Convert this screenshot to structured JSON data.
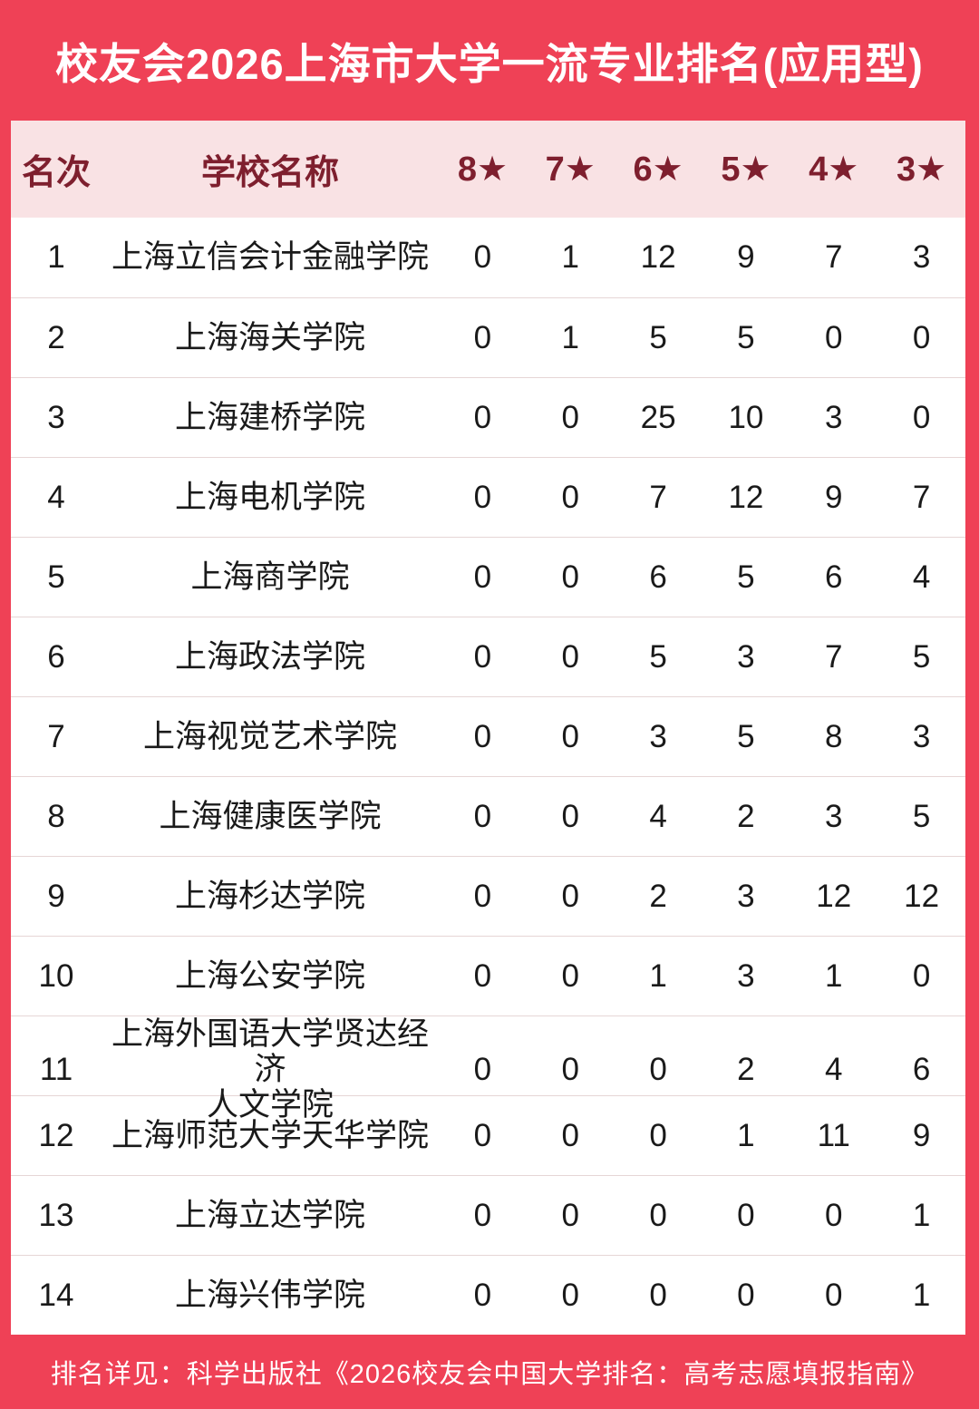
{
  "chart_data": {
    "type": "table",
    "title": "校友会2026上海市大学一流专业排名(应用型)",
    "columns": [
      "名次",
      "学校名称",
      "8★",
      "7★",
      "6★",
      "5★",
      "4★",
      "3★"
    ],
    "rows": [
      {
        "rank": "1",
        "school": "上海立信会计金融学院",
        "stars": [
          "0",
          "1",
          "12",
          "9",
          "7",
          "3"
        ]
      },
      {
        "rank": "2",
        "school": "上海海关学院",
        "stars": [
          "0",
          "1",
          "5",
          "5",
          "0",
          "0"
        ]
      },
      {
        "rank": "3",
        "school": "上海建桥学院",
        "stars": [
          "0",
          "0",
          "25",
          "10",
          "3",
          "0"
        ]
      },
      {
        "rank": "4",
        "school": "上海电机学院",
        "stars": [
          "0",
          "0",
          "7",
          "12",
          "9",
          "7"
        ]
      },
      {
        "rank": "5",
        "school": "上海商学院",
        "stars": [
          "0",
          "0",
          "6",
          "5",
          "6",
          "4"
        ]
      },
      {
        "rank": "6",
        "school": "上海政法学院",
        "stars": [
          "0",
          "0",
          "5",
          "3",
          "7",
          "5"
        ]
      },
      {
        "rank": "7",
        "school": "上海视觉艺术学院",
        "stars": [
          "0",
          "0",
          "3",
          "5",
          "8",
          "3"
        ]
      },
      {
        "rank": "8",
        "school": "上海健康医学院",
        "stars": [
          "0",
          "0",
          "4",
          "2",
          "3",
          "5"
        ]
      },
      {
        "rank": "9",
        "school": "上海杉达学院",
        "stars": [
          "0",
          "0",
          "2",
          "3",
          "12",
          "12"
        ]
      },
      {
        "rank": "10",
        "school": "上海公安学院",
        "stars": [
          "0",
          "0",
          "1",
          "3",
          "1",
          "0"
        ]
      },
      {
        "rank": "11",
        "school": "上海外国语大学贤达经济\n人文学院",
        "stars": [
          "0",
          "0",
          "0",
          "2",
          "4",
          "6"
        ]
      },
      {
        "rank": "12",
        "school": "上海师范大学天华学院",
        "stars": [
          "0",
          "0",
          "0",
          "1",
          "11",
          "9"
        ]
      },
      {
        "rank": "13",
        "school": "上海立达学院",
        "stars": [
          "0",
          "0",
          "0",
          "0",
          "0",
          "1"
        ]
      },
      {
        "rank": "14",
        "school": "上海兴伟学院",
        "stars": [
          "0",
          "0",
          "0",
          "0",
          "0",
          "1"
        ]
      }
    ],
    "footer": "排名详见：科学出版社《2026校友会中国大学排名：高考志愿填报指南》"
  },
  "colors": {
    "accent_red": "#EF4156",
    "header_pink": "#F9E2E4",
    "header_text": "#7E1F2E",
    "body_text": "#1A1A1A",
    "separator": "#E6D6D6",
    "title_text": "#FFFFFF",
    "footer_text": "#FFFFFF"
  }
}
